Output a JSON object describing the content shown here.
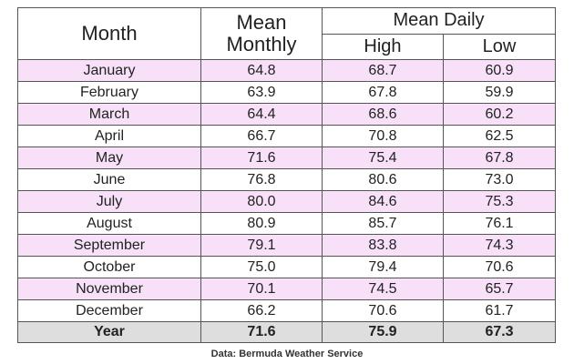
{
  "table": {
    "headers": {
      "month": "Month",
      "mean_monthly_line1": "Mean",
      "mean_monthly_line2": "Monthly",
      "mean_daily": "Mean Daily",
      "high": "High",
      "low": "Low"
    },
    "rows": [
      {
        "month": "January",
        "mean": "64.8",
        "high": "68.7",
        "low": "60.9"
      },
      {
        "month": "February",
        "mean": "63.9",
        "high": "67.8",
        "low": "59.9"
      },
      {
        "month": "March",
        "mean": "64.4",
        "high": "68.6",
        "low": "60.2"
      },
      {
        "month": "April",
        "mean": "66.7",
        "high": "70.8",
        "low": "62.5"
      },
      {
        "month": "May",
        "mean": "71.6",
        "high": "75.4",
        "low": "67.8"
      },
      {
        "month": "June",
        "mean": "76.8",
        "high": "80.6",
        "low": "73.0"
      },
      {
        "month": "July",
        "mean": "80.0",
        "high": "84.6",
        "low": "75.3"
      },
      {
        "month": "August",
        "mean": "80.9",
        "high": "85.7",
        "low": "76.1"
      },
      {
        "month": "September",
        "mean": "79.1",
        "high": "83.8",
        "low": "74.3"
      },
      {
        "month": "October",
        "mean": "75.0",
        "high": "79.4",
        "low": "70.6"
      },
      {
        "month": "November",
        "mean": "70.1",
        "high": "74.5",
        "low": "65.7"
      },
      {
        "month": "December",
        "mean": "66.2",
        "high": "70.6",
        "low": "61.7"
      }
    ],
    "total": {
      "label": "Year",
      "mean": "71.6",
      "high": "75.9",
      "low": "67.3"
    }
  },
  "source": "Data: Bermuda Weather Service",
  "colors": {
    "odd_row": "#f8e0f8",
    "even_row": "#ffffff",
    "total_row": "#dedede",
    "border": "#555555"
  }
}
